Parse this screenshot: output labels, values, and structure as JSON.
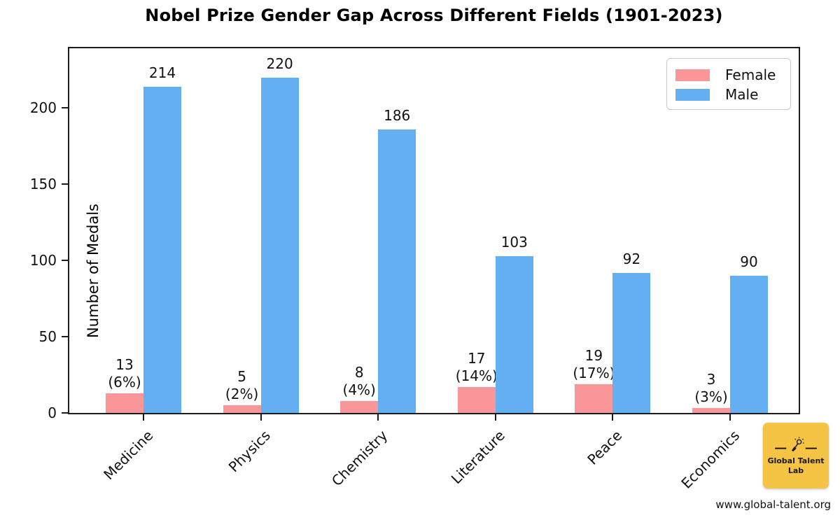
{
  "page": {
    "background": "#ffffff"
  },
  "chart_data": {
    "type": "bar",
    "title": "Nobel Prize Gender Gap Across Different Fields (1901-2023)",
    "xlabel": "",
    "ylabel": "Number of Medals",
    "categories": [
      "Medicine",
      "Physics",
      "Chemistry",
      "Literature",
      "Peace",
      "Economics"
    ],
    "series": [
      {
        "name": "Female",
        "color": "#f9969a",
        "values": [
          13,
          5,
          8,
          17,
          19,
          3
        ],
        "pct_labels": [
          "(6%)",
          "(2%)",
          "(4%)",
          "(14%)",
          "(17%)",
          "(3%)"
        ]
      },
      {
        "name": "Male",
        "color": "#64aff2",
        "values": [
          214,
          220,
          186,
          103,
          92,
          90
        ]
      }
    ],
    "yticks": [
      0,
      50,
      100,
      150,
      200
    ],
    "ylim": [
      0,
      241
    ],
    "grid": false,
    "legend_position": "upper right",
    "bar_value_labels_shown": true
  },
  "legend": {
    "female_label": "Female",
    "male_label": "Male"
  },
  "branding": {
    "logo_line1": "Global Talent",
    "logo_line2": "Lab",
    "logo_bg": "#f6c444",
    "website": "www.global-talent.org"
  }
}
